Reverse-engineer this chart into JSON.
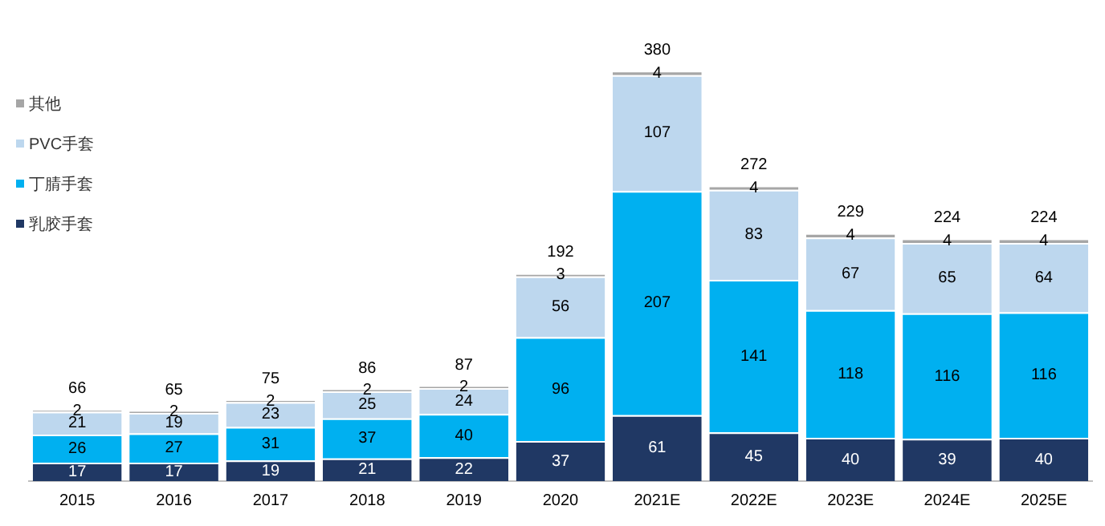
{
  "chart_data": {
    "type": "bar",
    "stacked": true,
    "data_labels": true,
    "grid": false,
    "legend": "top left",
    "categories": [
      "2015",
      "2016",
      "2017",
      "2018",
      "2019",
      "2020",
      "2021E",
      "2022E",
      "2023E",
      "2024E",
      "2025E"
    ],
    "series": [
      {
        "name": "乳胶手套",
        "color": "#203864",
        "values": [
          17,
          17,
          19,
          21,
          22,
          37,
          61,
          45,
          40,
          39,
          40
        ]
      },
      {
        "name": "丁腈手套",
        "color": "#00b0f0",
        "values": [
          26,
          27,
          31,
          37,
          40,
          96,
          207,
          141,
          118,
          116,
          116
        ]
      },
      {
        "name": "PVC手套",
        "color": "#bdd7ee",
        "values": [
          21,
          19,
          23,
          25,
          24,
          56,
          107,
          83,
          67,
          65,
          64
        ]
      },
      {
        "name": "其他",
        "color": "#a6a6a6",
        "values": [
          2,
          2,
          2,
          2,
          2,
          3,
          4,
          4,
          4,
          4,
          4
        ]
      }
    ],
    "totals": [
      "66",
      "65",
      "75",
      "86",
      "87",
      "192",
      "380",
      "272",
      "229",
      "224",
      "224"
    ]
  }
}
